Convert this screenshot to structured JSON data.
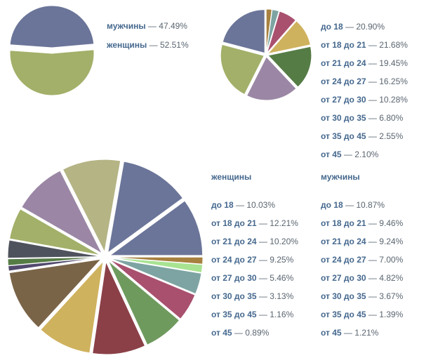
{
  "dash": " — ",
  "chart_data": [
    {
      "type": "pie",
      "title": "",
      "categories": [
        "мужчины",
        "женщины"
      ],
      "values": [
        47.49,
        52.51
      ],
      "display_values": [
        "47.49%",
        "52.51%"
      ],
      "colors": [
        "#6b7599",
        "#a2b069"
      ],
      "legend": "right",
      "exploded": true
    },
    {
      "type": "pie",
      "title": "",
      "categories": [
        "до 18",
        "от 18 до 21",
        "от 21 до 24",
        "от 24 до 27",
        "от 27 до 30",
        "от 30 до 35",
        "от 35 до 45",
        "от 45"
      ],
      "values": [
        20.9,
        21.68,
        19.45,
        16.25,
        10.28,
        6.8,
        2.55,
        2.1
      ],
      "display_values": [
        "20.90%",
        "21.68%",
        "19.45%",
        "16.25%",
        "10.28%",
        "6.80%",
        "2.55%",
        "2.10%"
      ],
      "colors": [
        "#6b7599",
        "#a2b069",
        "#9b87a5",
        "#567c46",
        "#cfb25e",
        "#a9506f",
        "#7da4a2",
        "#a7813f"
      ],
      "legend": "right",
      "exploded": true
    },
    {
      "type": "pie",
      "title": "",
      "series": [
        {
          "name": "женщины",
          "categories": [
            "до 18",
            "от 18 до 21",
            "от 21 до 24",
            "от 24 до 27",
            "от 27 до 30",
            "от 30 до 35",
            "от 35 до 45",
            "от 45"
          ],
          "values": [
            10.03,
            12.21,
            10.2,
            9.25,
            5.46,
            3.13,
            1.16,
            0.89
          ],
          "display_values": [
            "10.03%",
            "12.21%",
            "10.20%",
            "9.25%",
            "5.46%",
            "3.13%",
            "1.16%",
            "0.89%"
          ]
        },
        {
          "name": "мужчины",
          "categories": [
            "до 18",
            "от 18 до 21",
            "от 21 до 24",
            "от 24 до 27",
            "от 27 до 30",
            "от 30 до 35",
            "от 35 до 45",
            "от 45"
          ],
          "values": [
            10.87,
            9.46,
            9.24,
            7.0,
            4.82,
            3.67,
            1.39,
            1.21
          ],
          "display_values": [
            "10.87%",
            "9.46%",
            "9.24%",
            "7.00%",
            "4.82%",
            "3.67%",
            "1.39%",
            "1.21%"
          ]
        }
      ],
      "slice_order_clockwise_from_right": [
        "мужчины · от 45",
        "мужчины · от 35 до 45",
        "мужчины · от 30 до 35",
        "мужчины · от 27 до 30",
        "мужчины · от 24 до 27",
        "мужчины · от 21 до 24",
        "мужчины · от 18 до 21",
        "мужчины · до 18",
        "женщины · от 45",
        "женщины · от 35 до 45",
        "женщины · от 30 до 35",
        "женщины · от 27 до 30",
        "женщины · от 24 до 27",
        "женщины · от 21 до 24",
        "женщины · от 18 до 21",
        "женщины · до 18"
      ],
      "slice_values_clockwise_from_right": [
        1.21,
        1.39,
        3.67,
        4.82,
        7.0,
        9.24,
        9.46,
        10.87,
        0.89,
        1.16,
        3.13,
        5.46,
        9.25,
        10.2,
        12.21,
        10.03
      ],
      "slice_colors_clockwise_from_right": [
        "#a7813f",
        "#a8e392",
        "#7da4a2",
        "#a9506f",
        "#6f9a5e",
        "#8b4048",
        "#cfb25e",
        "#7a6448",
        "#524a6e",
        "#567c46",
        "#4e525c",
        "#a2b069",
        "#9b87a5",
        "#b5b485",
        "#6b7599",
        "#6b7599"
      ],
      "legend": "right",
      "exploded": true
    }
  ]
}
